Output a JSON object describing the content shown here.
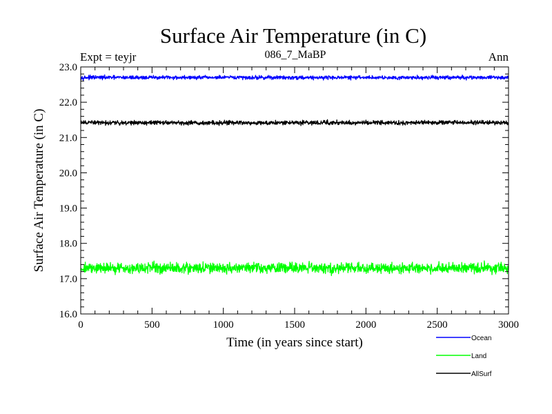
{
  "chart_data": {
    "type": "line",
    "title": "Surface Air Temperature (in C)",
    "subtitle": "086_7_MaBP",
    "left_label": "Expt = teyjr",
    "right_label": "Ann",
    "xlabel": "Time (in years since start)",
    "ylabel": "Surface Air Temperature (in C)",
    "xlim": [
      0,
      3000
    ],
    "ylim": [
      16.0,
      23.0
    ],
    "x_ticks": [
      0,
      500,
      1000,
      1500,
      2000,
      2500,
      3000
    ],
    "y_ticks": [
      "16.0",
      "17.0",
      "18.0",
      "19.0",
      "20.0",
      "21.0",
      "22.0",
      "23.0"
    ],
    "legend_position": "bottom-right",
    "series": [
      {
        "name": "Ocean",
        "color": "#0000ff",
        "mean": 22.7,
        "noise_amplitude": 0.08
      },
      {
        "name": "Land",
        "color": "#00ff00",
        "mean": 17.3,
        "noise_amplitude": 0.22
      },
      {
        "name": "AllSurf",
        "color": "#000000",
        "mean": 21.42,
        "noise_amplitude": 0.09
      }
    ]
  }
}
